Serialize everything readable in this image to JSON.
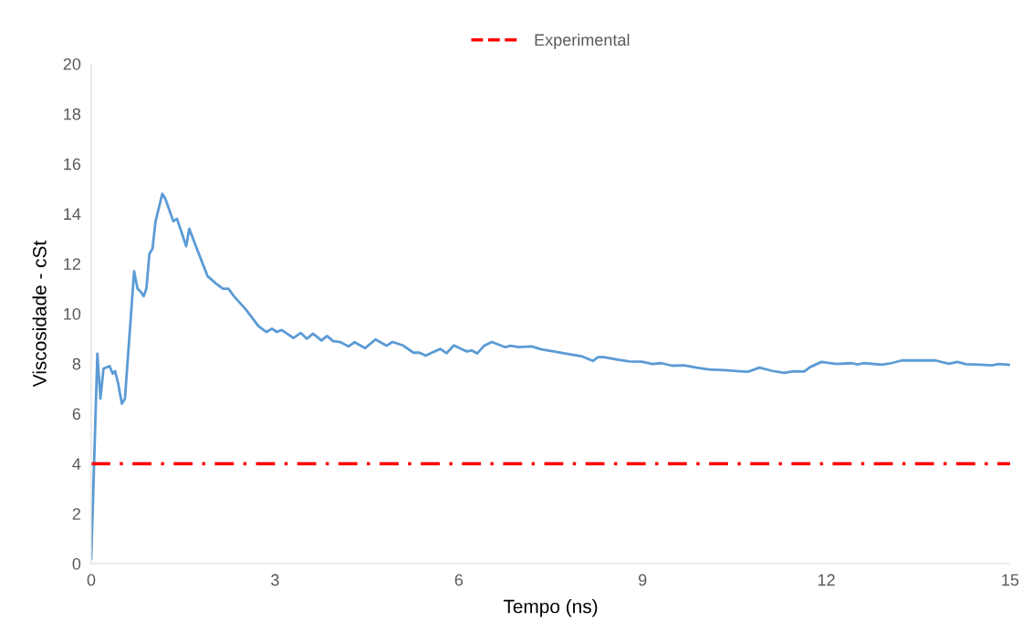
{
  "chart_data": {
    "type": "line",
    "xlabel": "Tempo (ns)",
    "ylabel": "Viscosidade - cSt",
    "xlim": [
      0,
      15
    ],
    "xticks": [
      0,
      3,
      6,
      9,
      12,
      15
    ],
    "ylim": [
      0,
      20
    ],
    "yticks": [
      0,
      2,
      4,
      6,
      8,
      10,
      12,
      14,
      16,
      18,
      20
    ],
    "grid": false,
    "legend": "top",
    "line_style": "solid",
    "marker": "none",
    "series": [
      {
        "color": "#5b9bd5",
        "x": [
          0,
          0.1,
          0.15,
          0.2,
          0.3,
          0.35,
          0.39,
          0.44,
          0.5,
          0.55,
          0.7,
          0.755,
          0.8,
          0.855,
          0.9,
          0.95,
          1.0,
          1.05,
          1.1,
          1.16,
          1.21,
          1.34,
          1.4,
          1.55,
          1.6,
          1.74,
          1.9,
          2.04,
          2.15,
          2.24,
          2.33,
          2.53,
          2.73,
          2.86,
          2.95,
          3.03,
          3.11,
          3.3,
          3.42,
          3.52,
          3.62,
          3.76,
          3.85,
          3.95,
          4.07,
          4.2,
          4.3,
          4.47,
          4.64,
          4.82,
          4.92,
          5.09,
          5.26,
          5.36,
          5.46,
          5.56,
          5.7,
          5.8,
          5.92,
          6.13,
          6.21,
          6.3,
          6.41,
          6.54,
          6.76,
          6.84,
          6.98,
          7.19,
          7.35,
          7.55,
          7.8,
          8.0,
          8.19,
          8.27,
          8.37,
          8.59,
          8.79,
          8.99,
          9.16,
          9.31,
          9.48,
          9.68,
          9.88,
          10.08,
          10.33,
          10.58,
          10.72,
          10.91,
          11.12,
          11.31,
          11.47,
          11.64,
          11.74,
          11.92,
          12.17,
          12.41,
          12.51,
          12.61,
          12.91,
          13.06,
          13.23,
          13.51,
          13.78,
          14.0,
          14.14,
          14.28,
          14.5,
          14.7,
          14.82,
          15.0
        ],
        "values": [
          0.2,
          8.4,
          6.6,
          7.8,
          7.9,
          7.6,
          7.7,
          7.2,
          6.4,
          6.6,
          11.7,
          11.0,
          10.9,
          10.7,
          11.0,
          12.4,
          12.6,
          13.7,
          14.2,
          14.8,
          14.6,
          13.7,
          13.8,
          12.7,
          13.4,
          12.5,
          11.5,
          11.2,
          11.0,
          11.0,
          10.7,
          10.15,
          9.5,
          9.27,
          9.4,
          9.27,
          9.35,
          9.03,
          9.23,
          9.0,
          9.2,
          8.93,
          9.11,
          8.9,
          8.86,
          8.69,
          8.86,
          8.62,
          8.97,
          8.72,
          8.87,
          8.73,
          8.44,
          8.44,
          8.32,
          8.44,
          8.59,
          8.42,
          8.73,
          8.49,
          8.53,
          8.41,
          8.71,
          8.87,
          8.66,
          8.72,
          8.66,
          8.69,
          8.57,
          8.49,
          8.38,
          8.3,
          8.11,
          8.26,
          8.26,
          8.16,
          8.09,
          8.08,
          7.99,
          8.02,
          7.92,
          7.93,
          7.84,
          7.77,
          7.74,
          7.7,
          7.68,
          7.84,
          7.71,
          7.63,
          7.7,
          7.69,
          7.87,
          8.07,
          7.99,
          8.02,
          7.97,
          8.02,
          7.96,
          8.02,
          8.13,
          8.13,
          8.13,
          8.0,
          8.07,
          7.98,
          7.96,
          7.93,
          7.99,
          7.95
        ]
      }
    ],
    "ref_lines": [
      {
        "axis": "y",
        "value": 4,
        "label": "Experimental",
        "color": "#ff0000",
        "line_style": "dashdot"
      }
    ]
  }
}
